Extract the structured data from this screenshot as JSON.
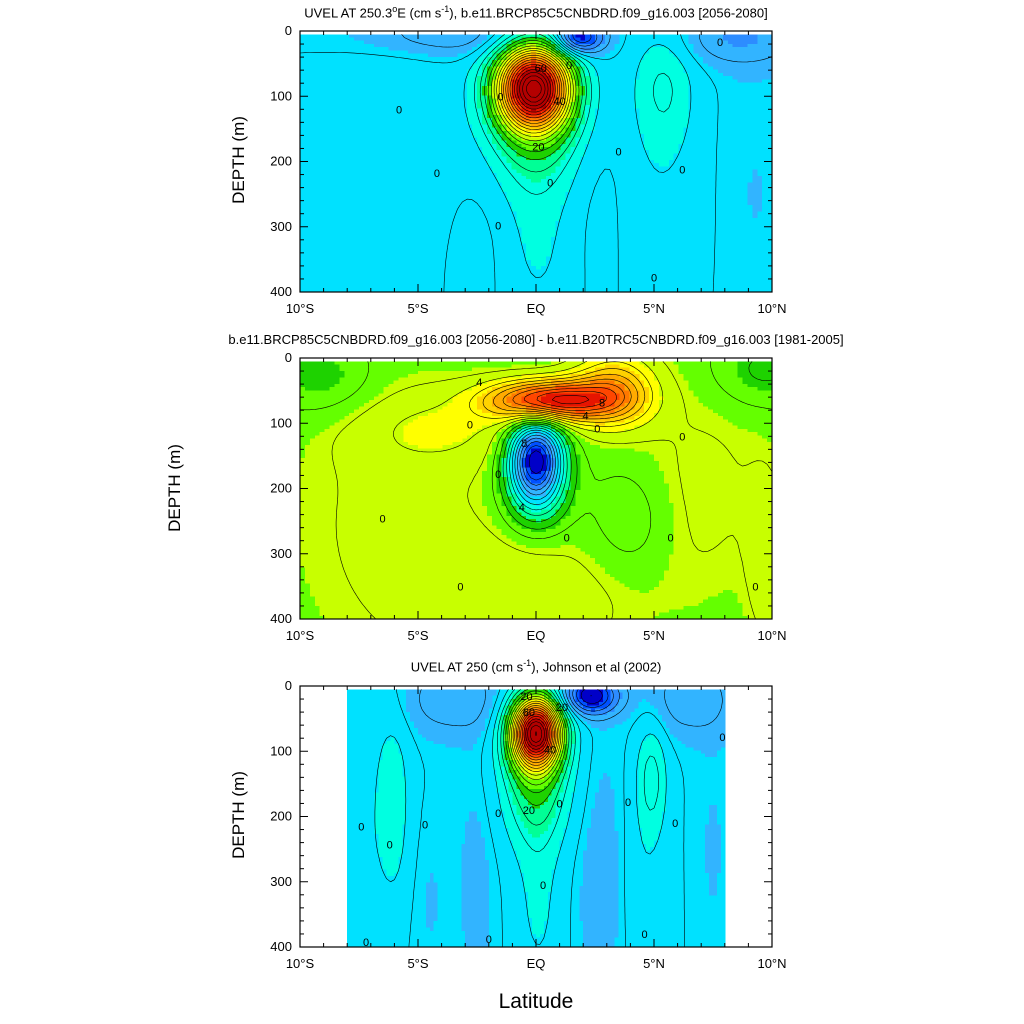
{
  "figure": {
    "xlabel": "Latitude",
    "colors": {
      "palette": [
        "#0000c8",
        "#0050ff",
        "#2d8cff",
        "#32b4ff",
        "#00e1ff",
        "#00ffe1",
        "#00ff96",
        "#1ed200",
        "#64ff00",
        "#c8ff00",
        "#ffff00",
        "#ffd200",
        "#ffaa00",
        "#ff7800",
        "#ff4600",
        "#e61400",
        "#b40000"
      ],
      "contour_line": "#000000",
      "axis": "#000000"
    }
  },
  "chart_data": [
    {
      "type": "heatmap",
      "subtype": "filled-contour",
      "title_parts": {
        "pre": "UVEL AT 250.3",
        "sup1": "o",
        "mid": "E (cm s",
        "sup2": "-1",
        "post": "), b.e11.BRCP85C5CNBDRD.f09_g16.003 [2056-2080]"
      },
      "xlabel": "",
      "ylabel": "DEPTH (m)",
      "xlim": [
        -10,
        10
      ],
      "ylim": [
        400,
        0
      ],
      "x_ticks": [
        {
          "v": -10,
          "label": "10°S"
        },
        {
          "v": -5,
          "label": "5°S"
        },
        {
          "v": 0,
          "label": "EQ"
        },
        {
          "v": 5,
          "label": "5°N"
        },
        {
          "v": 10,
          "label": "10°N"
        }
      ],
      "y_ticks": [
        0,
        100,
        200,
        300,
        400
      ],
      "contour_interval": 5,
      "color_scale": {
        "min": -30,
        "max": 90
      },
      "data_extent": {
        "x": [
          -10,
          10
        ],
        "y": [
          5,
          400
        ]
      },
      "features": [
        {
          "kind": "core",
          "x": -0.1,
          "y": 85,
          "amp": 90,
          "sx": 1.1,
          "sy": 45
        },
        {
          "kind": "core",
          "x": 0,
          "y": 140,
          "amp": 18,
          "sx": 1.4,
          "sy": 70
        },
        {
          "kind": "core",
          "x": 0,
          "y": 320,
          "amp": 6,
          "sx": 1.2,
          "sy": 110
        },
        {
          "kind": "core",
          "x": 1.8,
          "y": 10,
          "amp": -28,
          "sx": 0.7,
          "sy": 18
        },
        {
          "kind": "core",
          "x": 5.4,
          "y": 80,
          "amp": 9,
          "sx": 0.9,
          "sy": 70
        },
        {
          "kind": "core",
          "x": 5.2,
          "y": 250,
          "amp": 4,
          "sx": 1.6,
          "sy": 150
        },
        {
          "kind": "core",
          "x": -6,
          "y": 200,
          "amp": 4,
          "sx": 2.2,
          "sy": 160
        },
        {
          "kind": "core",
          "x": -3.5,
          "y": 5,
          "amp": -9,
          "sx": 3,
          "sy": 25
        },
        {
          "kind": "core",
          "x": 8.5,
          "y": 10,
          "amp": -9,
          "sx": 2,
          "sy": 30
        },
        {
          "kind": "core",
          "x": -2.5,
          "y": 330,
          "amp": -3,
          "sx": 1.2,
          "sy": 100
        },
        {
          "kind": "core",
          "x": 2.8,
          "y": 250,
          "amp": -3,
          "sx": 1.0,
          "sy": 150
        },
        {
          "kind": "core",
          "x": 9,
          "y": 250,
          "amp": -2,
          "sx": 1.5,
          "sy": 180
        }
      ],
      "contour_labels": [
        {
          "v": "0",
          "x": -5.8,
          "y": 120
        },
        {
          "v": "0",
          "x": -4.2,
          "y": 218
        },
        {
          "v": "0",
          "x": -1.5,
          "y": 100
        },
        {
          "v": "0",
          "x": -1.6,
          "y": 298
        },
        {
          "v": "0",
          "x": 1.4,
          "y": 52
        },
        {
          "v": "60",
          "x": 0.2,
          "y": 57
        },
        {
          "v": "40",
          "x": 1.0,
          "y": 107
        },
        {
          "v": "20",
          "x": 0.1,
          "y": 177
        },
        {
          "v": "0",
          "x": 0.6,
          "y": 232
        },
        {
          "v": "0",
          "x": 3.5,
          "y": 185
        },
        {
          "v": "0",
          "x": 6.2,
          "y": 212
        },
        {
          "v": "0",
          "x": 7.8,
          "y": 17
        },
        {
          "v": "0",
          "x": 5,
          "y": 378
        }
      ]
    },
    {
      "type": "heatmap",
      "subtype": "filled-contour",
      "title_parts": {
        "pre": "b.e11.BRCP85C5CNBDRD.f09_g16.003 [2056-2080] - b.e11.B20TRC5CNBDRD.f09_g16.003 [1981-2005]",
        "sup1": "",
        "mid": "",
        "sup2": "",
        "post": ""
      },
      "xlabel": "",
      "ylabel": "DEPTH (m)",
      "xlim": [
        -10,
        10
      ],
      "ylim": [
        400,
        0
      ],
      "x_ticks": [
        {
          "v": -10,
          "label": "10°S"
        },
        {
          "v": -5,
          "label": "5°S"
        },
        {
          "v": 0,
          "label": "EQ"
        },
        {
          "v": 5,
          "label": "5°N"
        },
        {
          "v": 10,
          "label": "10°N"
        }
      ],
      "y_ticks": [
        0,
        100,
        200,
        300,
        400
      ],
      "contour_interval": 1,
      "color_scale": {
        "min": -12,
        "max": 12
      },
      "data_extent": {
        "x": [
          -10,
          10
        ],
        "y": [
          5,
          400
        ]
      },
      "features": [
        {
          "kind": "core",
          "x": 0.6,
          "y": 65,
          "amp": 10,
          "sx": 1.8,
          "sy": 22
        },
        {
          "kind": "core",
          "x": 3.3,
          "y": 50,
          "amp": 5,
          "sx": 1.2,
          "sy": 40
        },
        {
          "kind": "core",
          "x": 0,
          "y": 150,
          "amp": -11,
          "sx": 0.8,
          "sy": 40
        },
        {
          "kind": "core",
          "x": 0,
          "y": 210,
          "amp": -4,
          "sx": 0.9,
          "sy": 40
        },
        {
          "kind": "core",
          "x": -4,
          "y": 110,
          "amp": 1.5,
          "sx": 2.5,
          "sy": 40
        },
        {
          "kind": "core",
          "x": -6,
          "y": 250,
          "amp": 1.2,
          "sx": 4,
          "sy": 200
        },
        {
          "kind": "core",
          "x": 0,
          "y": 380,
          "amp": 1.5,
          "sx": 3,
          "sy": 80
        },
        {
          "kind": "core",
          "x": 7,
          "y": 200,
          "amp": 1.2,
          "sx": 2.5,
          "sy": 150
        },
        {
          "kind": "core",
          "x": -9,
          "y": 30,
          "amp": -1.5,
          "sx": 1.5,
          "sy": 40
        },
        {
          "kind": "core",
          "x": 9.5,
          "y": 20,
          "amp": -1.5,
          "sx": 1.5,
          "sy": 40
        },
        {
          "kind": "core",
          "x": 4,
          "y": 250,
          "amp": -1.2,
          "sx": 1.2,
          "sy": 60
        },
        {
          "kind": "core",
          "x": 9.8,
          "y": 320,
          "amp": 1.3,
          "sx": 0.6,
          "sy": 100
        }
      ],
      "contour_labels": [
        {
          "v": "4",
          "x": -2.4,
          "y": 37
        },
        {
          "v": "8",
          "x": 2.8,
          "y": 68
        },
        {
          "v": "4",
          "x": 2.1,
          "y": 88
        },
        {
          "v": "0",
          "x": 2.6,
          "y": 108
        },
        {
          "v": "0",
          "x": -2.8,
          "y": 102
        },
        {
          "v": "8",
          "x": -0.5,
          "y": 130
        },
        {
          "v": "4",
          "x": -0.6,
          "y": 228
        },
        {
          "v": "0",
          "x": -1.6,
          "y": 178
        },
        {
          "v": "0",
          "x": -6.5,
          "y": 246
        },
        {
          "v": "0",
          "x": 6.2,
          "y": 120
        },
        {
          "v": "0",
          "x": 1.3,
          "y": 275
        },
        {
          "v": "0",
          "x": 5.7,
          "y": 275
        },
        {
          "v": "0",
          "x": -3.2,
          "y": 350
        },
        {
          "v": "0",
          "x": 9.3,
          "y": 350
        }
      ]
    },
    {
      "type": "heatmap",
      "subtype": "filled-contour",
      "title_parts": {
        "pre": "UVEL AT 250 (cm s",
        "sup1": "",
        "mid": "",
        "sup2": "-1",
        "post": "), Johnson et al (2002)"
      },
      "xlabel": "",
      "ylabel": "DEPTH (m)",
      "xlim": [
        -10,
        10
      ],
      "ylim": [
        400,
        0
      ],
      "x_ticks": [
        {
          "v": -10,
          "label": "10°S"
        },
        {
          "v": -5,
          "label": "5°S"
        },
        {
          "v": 0,
          "label": "EQ"
        },
        {
          "v": 5,
          "label": "5°N"
        },
        {
          "v": 10,
          "label": "10°N"
        }
      ],
      "y_ticks": [
        0,
        100,
        200,
        300,
        400
      ],
      "contour_interval": 5,
      "color_scale": {
        "min": -30,
        "max": 90
      },
      "data_extent": {
        "x": [
          -8,
          8
        ],
        "y": [
          5,
          400
        ]
      },
      "features": [
        {
          "kind": "core",
          "x": 0,
          "y": 70,
          "amp": 88,
          "sx": 0.75,
          "sy": 38
        },
        {
          "kind": "core",
          "x": 0,
          "y": 140,
          "amp": 20,
          "sx": 1.0,
          "sy": 70
        },
        {
          "kind": "core",
          "x": 0.1,
          "y": 330,
          "amp": 6,
          "sx": 0.7,
          "sy": 110
        },
        {
          "kind": "core",
          "x": 2.3,
          "y": 15,
          "amp": -30,
          "sx": 0.8,
          "sy": 20
        },
        {
          "kind": "core",
          "x": -6.1,
          "y": 180,
          "amp": 9,
          "sx": 0.55,
          "sy": 110
        },
        {
          "kind": "core",
          "x": -7.5,
          "y": 300,
          "amp": 4,
          "sx": 0.5,
          "sy": 150
        },
        {
          "kind": "core",
          "x": 4.9,
          "y": 140,
          "amp": 11,
          "sx": 0.45,
          "sy": 60
        },
        {
          "kind": "core",
          "x": 4.6,
          "y": 300,
          "amp": 4,
          "sx": 0.7,
          "sy": 120
        },
        {
          "kind": "core",
          "x": -3.5,
          "y": 20,
          "amp": -8,
          "sx": 1.6,
          "sy": 40
        },
        {
          "kind": "core",
          "x": 6.5,
          "y": 20,
          "amp": -8,
          "sx": 1.3,
          "sy": 40
        },
        {
          "kind": "core",
          "x": -2.5,
          "y": 300,
          "amp": -3,
          "sx": 0.6,
          "sy": 150
        },
        {
          "kind": "core",
          "x": 2.8,
          "y": 300,
          "amp": -4,
          "sx": 0.8,
          "sy": 150
        },
        {
          "kind": "core",
          "x": 7.5,
          "y": 250,
          "amp": -2,
          "sx": 0.6,
          "sy": 150
        },
        {
          "kind": "core",
          "x": -4.5,
          "y": 330,
          "amp": -2,
          "sx": 0.6,
          "sy": 100
        }
      ],
      "contour_labels": [
        {
          "v": "20",
          "x": -0.4,
          "y": 15
        },
        {
          "v": "60",
          "x": -0.3,
          "y": 40
        },
        {
          "v": "20",
          "x": 1.1,
          "y": 32
        },
        {
          "v": "40",
          "x": 0.6,
          "y": 97
        },
        {
          "v": "20",
          "x": -0.3,
          "y": 190
        },
        {
          "v": "0",
          "x": -7.4,
          "y": 215
        },
        {
          "v": "0",
          "x": -6.2,
          "y": 243
        },
        {
          "v": "0",
          "x": -4.7,
          "y": 212
        },
        {
          "v": "0",
          "x": 1,
          "y": 180
        },
        {
          "v": "0",
          "x": -1.6,
          "y": 195
        },
        {
          "v": "0",
          "x": 0.3,
          "y": 305
        },
        {
          "v": "0",
          "x": 3.9,
          "y": 178
        },
        {
          "v": "0",
          "x": 5.9,
          "y": 210
        },
        {
          "v": "0",
          "x": 7.9,
          "y": 78
        },
        {
          "v": "0",
          "x": -2,
          "y": 388
        },
        {
          "v": "0",
          "x": 4.6,
          "y": 380
        },
        {
          "v": "0",
          "x": -7.2,
          "y": 392
        }
      ]
    }
  ]
}
